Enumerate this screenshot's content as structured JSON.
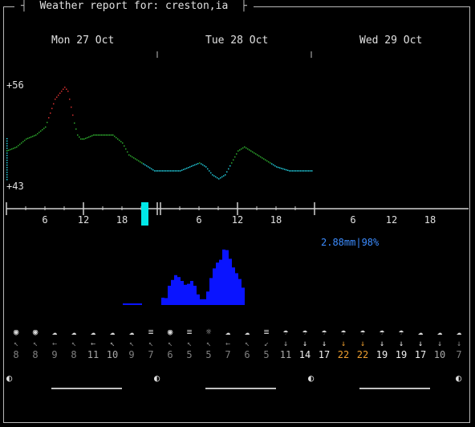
{
  "header": {
    "title": "Weather report for: creston,ia",
    "bar_left": "┤",
    "bar_right": "├"
  },
  "days": [
    "Mon 27 Oct",
    "Tue 28 Oct",
    "Wed 29 Oct"
  ],
  "chart_data": {
    "type": "line",
    "title": "",
    "ylabel": "",
    "ylim": [
      43,
      56
    ],
    "y_tick_labels": [
      "+56",
      "+43"
    ],
    "x_tick_labels": [
      "6",
      "12",
      "18",
      "6",
      "12",
      "18",
      "6",
      "12",
      "18"
    ],
    "temperature_series": {
      "hours": [
        0,
        3,
        6,
        9,
        12,
        15,
        17,
        18,
        19,
        20,
        21,
        22,
        23,
        24,
        27,
        30,
        33,
        36,
        38,
        40,
        42,
        44,
        46,
        48,
        51,
        54,
        57,
        60,
        62,
        64,
        66,
        68,
        70,
        72,
        74,
        76,
        78,
        80,
        84,
        88,
        90,
        92,
        94,
        96
      ],
      "values": [
        47.5,
        48,
        49,
        49.5,
        50.5,
        54,
        55,
        55.5,
        55,
        53,
        51,
        49.5,
        49,
        49,
        49.5,
        49.5,
        49.5,
        48.5,
        47,
        46.5,
        46,
        45.5,
        45,
        45,
        45,
        45,
        45.5,
        46,
        45.5,
        44.5,
        44,
        44.5,
        46,
        47.5,
        48,
        47.5,
        47,
        46.5,
        45.5,
        45,
        45,
        45,
        45,
        45
      ],
      "color_scale": {
        "cold": "#22c8d8",
        "mild": "#2eaa2e",
        "warm": "#d83030"
      }
    },
    "precipitation": {
      "label": "2.88mm|98%",
      "color": "#0a14ff",
      "hours": [
        36,
        37,
        38,
        39,
        40,
        41,
        44,
        45,
        46,
        47,
        48,
        49,
        50,
        51,
        52,
        53,
        54,
        55,
        56,
        57,
        58,
        59,
        60,
        61,
        62,
        63,
        64,
        65,
        66,
        67,
        68,
        69,
        70,
        71,
        72,
        73
      ],
      "values": [
        0.08,
        0.08,
        0.04,
        0.06,
        0.08,
        0.06,
        0,
        0,
        0,
        0,
        0.38,
        0.36,
        1.0,
        1.3,
        1.55,
        1.45,
        1.25,
        1.05,
        1.1,
        1.25,
        1.0,
        0.55,
        0.3,
        0.3,
        0.7,
        1.4,
        1.9,
        2.2,
        2.35,
        2.88,
        2.85,
        2.4,
        1.95,
        1.65,
        1.35,
        0.9
      ]
    }
  },
  "current_time_marker": {
    "color": "#00e8e8"
  },
  "weather_icons": [
    "sun",
    "sun",
    "cloud-partly",
    "cloud-partly",
    "cloud",
    "cloud-partly",
    "cloud-partly",
    "fog",
    "sun",
    "fog",
    "cloud-sun",
    "cloud-partly",
    "cloud-partly",
    "fog",
    "cloud-rain",
    "cloud-rain",
    "cloud-rain",
    "cloud-rain",
    "cloud-rain",
    "cloud-rain",
    "cloud-rain",
    "cloud-partly",
    "cloud-partly",
    "cloud-partly"
  ],
  "wind": [
    {
      "dir": "↖",
      "speed": "8",
      "color": "#808080"
    },
    {
      "dir": "↖",
      "speed": "8",
      "color": "#808080"
    },
    {
      "dir": "←",
      "speed": "9",
      "color": "#808080"
    },
    {
      "dir": "↖",
      "speed": "8",
      "color": "#808080"
    },
    {
      "dir": "←",
      "speed": "11",
      "color": "#a8a8a8"
    },
    {
      "dir": "↖",
      "speed": "10",
      "color": "#a8a8a8"
    },
    {
      "dir": "↖",
      "speed": "9",
      "color": "#808080"
    },
    {
      "dir": "↖",
      "speed": "7",
      "color": "#808080"
    },
    {
      "dir": "↖",
      "speed": "6",
      "color": "#808080"
    },
    {
      "dir": "↖",
      "speed": "5",
      "color": "#808080"
    },
    {
      "dir": "↖",
      "speed": "5",
      "color": "#808080"
    },
    {
      "dir": "←",
      "speed": "7",
      "color": "#808080"
    },
    {
      "dir": "↖",
      "speed": "6",
      "color": "#808080"
    },
    {
      "dir": "↙",
      "speed": "5",
      "color": "#808080"
    },
    {
      "dir": "↓",
      "speed": "11",
      "color": "#a8a8a8"
    },
    {
      "dir": "↓",
      "speed": "14",
      "color": "#f0f0f0"
    },
    {
      "dir": "↓",
      "speed": "17",
      "color": "#f0f0f0"
    },
    {
      "dir": "↓",
      "speed": "22",
      "color": "#f0a030"
    },
    {
      "dir": "↓",
      "speed": "22",
      "color": "#f0a030"
    },
    {
      "dir": "↓",
      "speed": "19",
      "color": "#f0f0f0"
    },
    {
      "dir": "↓",
      "speed": "19",
      "color": "#f0f0f0"
    },
    {
      "dir": "↓",
      "speed": "17",
      "color": "#f0f0f0"
    },
    {
      "dir": "↓",
      "speed": "10",
      "color": "#a8a8a8"
    },
    {
      "dir": "↓",
      "speed": "7",
      "color": "#808080"
    }
  ],
  "moon_phases": [
    "◐",
    "◐",
    "◐",
    "◐"
  ],
  "icon_glyphs": {
    "sun": "◉",
    "cloud-partly": "☁",
    "cloud": "☁",
    "fog": "≡",
    "cloud-sun": "☼",
    "cloud-rain": "☂"
  }
}
